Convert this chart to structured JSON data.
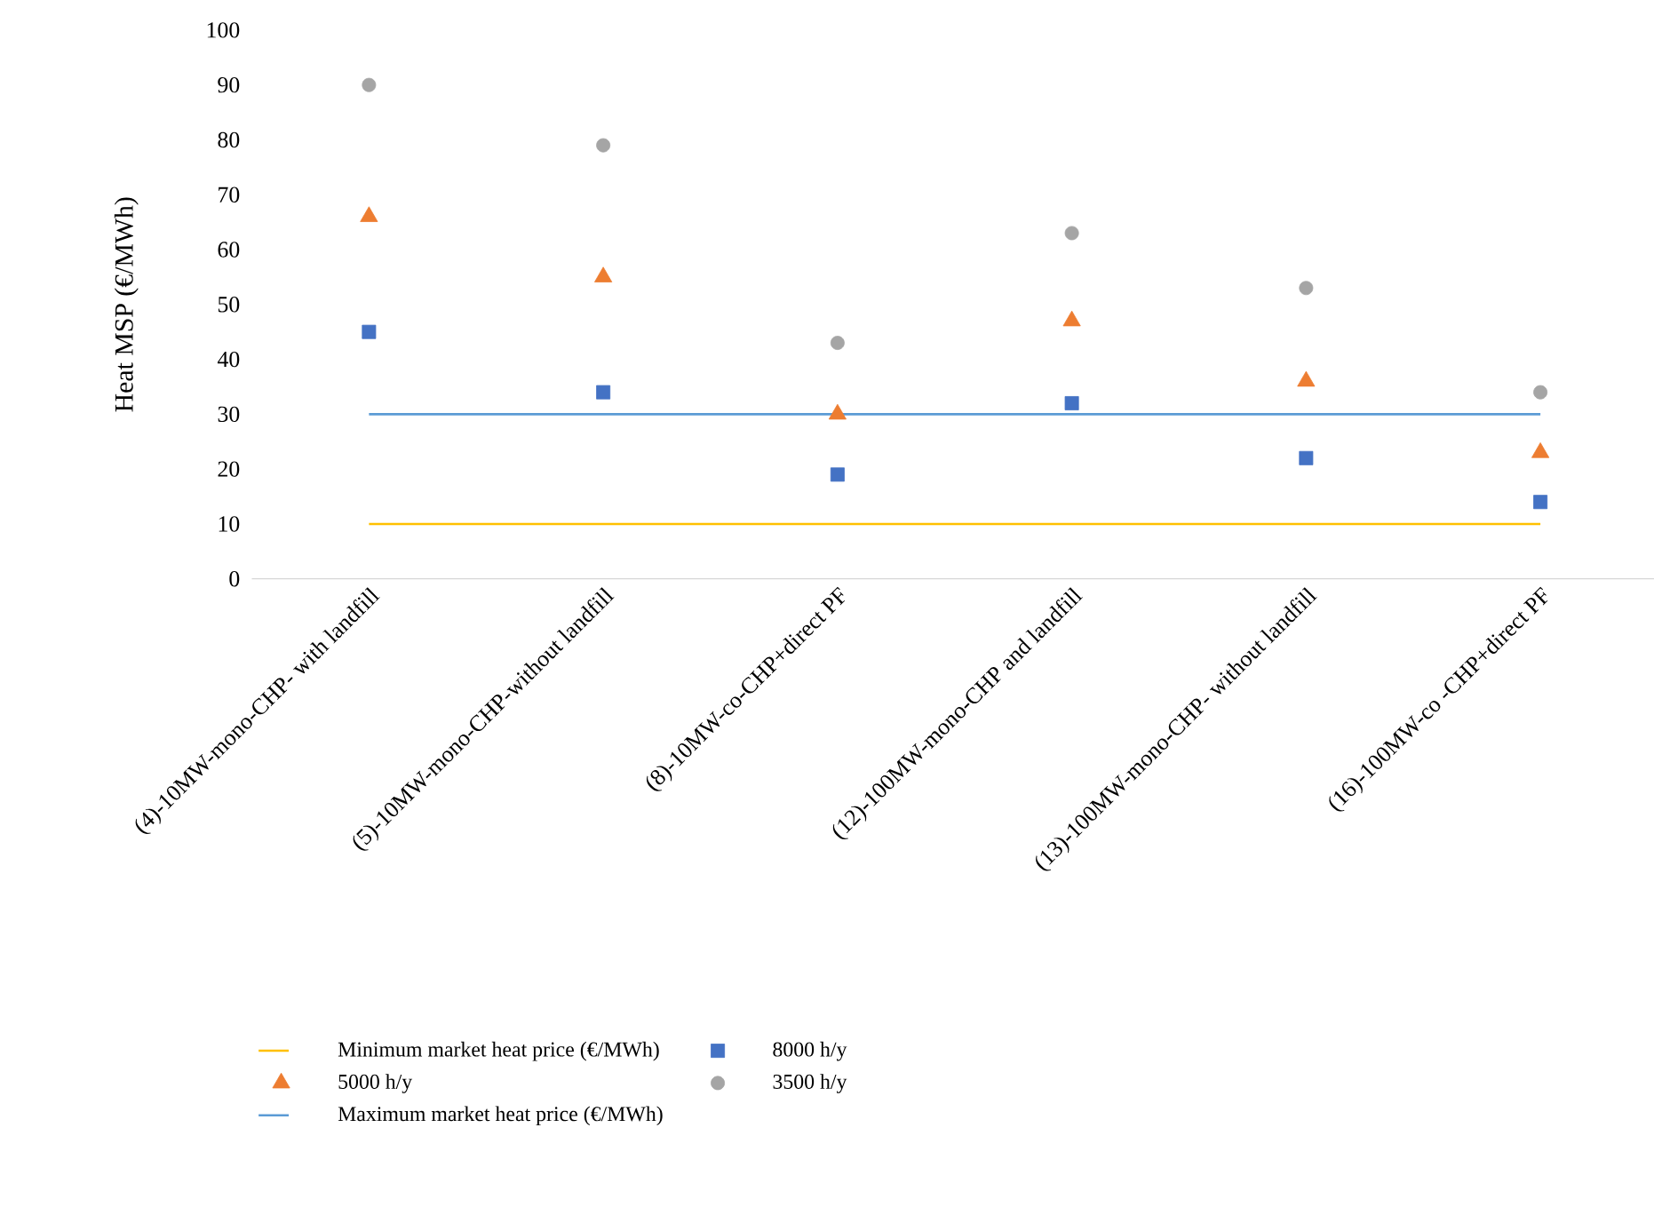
{
  "chart_data": {
    "type": "scatter",
    "ylabel": "Heat MSP (€/MWh)",
    "categories": [
      "(4)-10MW-mono-CHP- with landfill",
      "(5)-10MW-mono-CHP-without landfill",
      "(8)-10MW-co-CHP+direct PF",
      "(12)-100MW-mono-CHP and landfill",
      "(13)-100MW-mono-CHP- without landfill",
      "(16)-100MW-co -CHP+direct PF"
    ],
    "series": [
      {
        "name": "Minimum market heat price (€/MWh)",
        "type": "line",
        "marker": "none",
        "color": "#ffc000",
        "values": [
          10,
          10,
          10,
          10,
          10,
          10
        ]
      },
      {
        "name": "8000 h/y",
        "type": "scatter",
        "marker": "square",
        "color": "#4472c4",
        "values": [
          45,
          34,
          19,
          32,
          22,
          14
        ]
      },
      {
        "name": "5000 h/y",
        "type": "scatter",
        "marker": "triangle",
        "color": "#ed7d31",
        "values": [
          66,
          55,
          30,
          47,
          36,
          23
        ]
      },
      {
        "name": "3500 h/y",
        "type": "scatter",
        "marker": "circle",
        "color": "#a5a5a5",
        "values": [
          90,
          79,
          43,
          63,
          53,
          34
        ]
      },
      {
        "name": "Maximum market heat price (€/MWh)",
        "type": "line",
        "marker": "none",
        "color": "#5b9bd5",
        "values": [
          30,
          30,
          30,
          30,
          30,
          30
        ]
      }
    ],
    "ylim": [
      0,
      100
    ],
    "yticks": [
      0,
      10,
      20,
      30,
      40,
      50,
      60,
      70,
      80,
      90,
      100
    ],
    "grid": false,
    "legend": "bottom"
  }
}
